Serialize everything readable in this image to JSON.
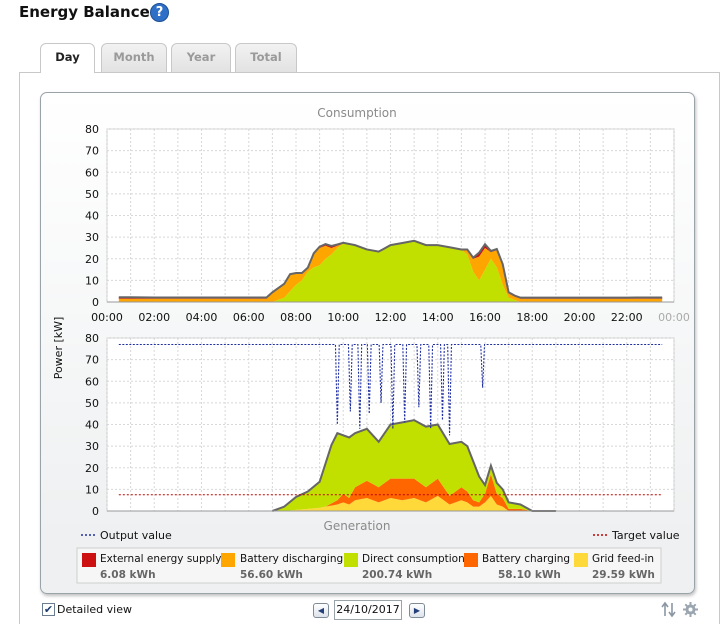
{
  "page": {
    "title": "Energy Balance",
    "help_icon": "help-icon"
  },
  "tabs": [
    {
      "label": "Day",
      "active": true
    },
    {
      "label": "Month",
      "active": false
    },
    {
      "label": "Year",
      "active": false
    },
    {
      "label": "Total",
      "active": false
    }
  ],
  "colors": {
    "external": "#cc1010",
    "battery_discharging": "#ffa500",
    "direct_consumption": "#c2e000",
    "battery_charging": "#ff6600",
    "grid_feed_in": "#ffd83a",
    "outline": "#666666",
    "output_line": "#1f2fa0",
    "target_line": "#c00000"
  },
  "chart_data": [
    {
      "type": "area",
      "title": "Consumption",
      "ylabel": "Power [kW]",
      "ylim": [
        0,
        80
      ],
      "yticks": [
        "80",
        "70",
        "60",
        "50",
        "40",
        "30",
        "20",
        "10",
        "0"
      ],
      "xticks": [
        "00:00",
        "02:00",
        "04:00",
        "06:00",
        "08:00",
        "10:00",
        "12:00",
        "14:00",
        "16:00",
        "18:00",
        "20:00",
        "22:00",
        "00:00"
      ],
      "x_hours": [
        0.5,
        1,
        2,
        3,
        4,
        5,
        6,
        6.75,
        7,
        7.5,
        7.75,
        8,
        8.25,
        8.5,
        8.75,
        9,
        9.25,
        9.5,
        9.75,
        10,
        10.5,
        11,
        11.5,
        12,
        12.5,
        13,
        13.5,
        14,
        14.5,
        15,
        15.25,
        15.5,
        15.75,
        16,
        16.25,
        16.5,
        16.75,
        17,
        17.25,
        17.5,
        18,
        19,
        20,
        21,
        22,
        22.5,
        23,
        23.5
      ],
      "series": [
        {
          "name": "Direct consumption",
          "values": [
            0,
            0,
            0,
            0,
            0,
            0,
            0,
            0,
            0,
            2,
            5,
            8,
            10,
            14,
            16,
            17,
            20,
            22,
            25,
            27,
            26,
            24,
            23,
            26,
            27,
            28,
            26,
            26,
            25,
            24,
            22,
            14,
            10,
            15,
            20,
            16,
            8,
            2,
            1,
            0,
            0,
            0,
            0,
            0,
            0,
            0,
            0,
            0
          ]
        },
        {
          "name": "Battery discharging",
          "values": [
            1.5,
            1.5,
            1.5,
            1.5,
            1.5,
            1.5,
            1.5,
            1.5,
            4,
            6,
            7.5,
            5,
            3,
            1.5,
            6,
            8,
            6,
            3,
            1,
            0,
            0,
            0,
            0,
            0,
            0,
            0,
            0,
            0,
            0,
            0,
            2,
            6,
            11,
            10,
            3,
            8,
            9,
            2,
            1.5,
            1.5,
            1.5,
            1.5,
            1.5,
            1.5,
            1.5,
            1.5,
            1.5,
            1.5
          ]
        },
        {
          "name": "External energy supply",
          "values": [
            0.7,
            0.7,
            0.6,
            0.6,
            0.6,
            0.6,
            0.6,
            0.6,
            0.5,
            0.4,
            0.4,
            0.4,
            0.4,
            0.4,
            0.5,
            0.6,
            0.8,
            0.9,
            0.6,
            0.4,
            0.3,
            0.3,
            0.3,
            0.3,
            0.3,
            0.3,
            0.3,
            0.3,
            0.3,
            0.3,
            0.3,
            0.5,
            1.8,
            1.7,
            0.6,
            0.5,
            0.5,
            0.5,
            0.5,
            0.5,
            0.5,
            0.5,
            0.5,
            0.5,
            0.5,
            0.6,
            0.6,
            0.6
          ]
        }
      ]
    },
    {
      "type": "area",
      "title": "Generation",
      "ylabel": "Power [kW]",
      "ylim": [
        0,
        80
      ],
      "yticks": [
        "80",
        "70",
        "60",
        "50",
        "40",
        "30",
        "20",
        "10",
        "0"
      ],
      "x_hours": [
        7,
        7.5,
        8,
        8.5,
        9,
        9.25,
        9.5,
        9.75,
        10,
        10.25,
        10.5,
        11,
        11.5,
        12,
        12.5,
        13,
        13.5,
        14,
        14.5,
        15,
        15.25,
        15.5,
        15.75,
        16,
        16.25,
        16.5,
        16.75,
        17,
        17.5,
        18,
        18.5,
        19
      ],
      "series": [
        {
          "name": "Grid feed-in",
          "values": [
            0,
            0,
            0.5,
            1,
            1.5,
            2,
            2.5,
            3,
            4,
            3,
            5,
            6,
            4,
            6,
            5,
            6,
            4,
            7,
            3,
            5,
            4,
            2,
            2,
            4,
            7,
            3,
            2,
            0,
            0,
            0,
            0,
            0
          ]
        },
        {
          "name": "Battery charging",
          "values": [
            0,
            0,
            0,
            0,
            0,
            0,
            1,
            2,
            4,
            3,
            6,
            8,
            7,
            9,
            10,
            9,
            7,
            8,
            4,
            6,
            5,
            3,
            2,
            4,
            10,
            5,
            4,
            1,
            1,
            0,
            0,
            0
          ]
        },
        {
          "name": "Direct consumption",
          "values": [
            0,
            2,
            6,
            8,
            12,
            20,
            27,
            31,
            27,
            28,
            25,
            24,
            21,
            25,
            26,
            27,
            28,
            25,
            24,
            21,
            21,
            18,
            12,
            4,
            4,
            5,
            4,
            3,
            2,
            0,
            0,
            0
          ]
        }
      ],
      "output_value": {
        "name": "Output value",
        "level": 77,
        "dips": [
          [
            9.75,
            40
          ],
          [
            10.3,
            46
          ],
          [
            10.7,
            38
          ],
          [
            11.1,
            45
          ],
          [
            11.6,
            50
          ],
          [
            12.1,
            38
          ],
          [
            12.6,
            41
          ],
          [
            13.2,
            48
          ],
          [
            13.7,
            38
          ],
          [
            14.2,
            42
          ],
          [
            14.5,
            35
          ],
          [
            15.9,
            57
          ]
        ]
      },
      "target_value": {
        "name": "Target value",
        "level": 7.5
      }
    }
  ],
  "legend": [
    {
      "label": "External energy supply",
      "value": "6.08 kWh",
      "color": "#cc1010"
    },
    {
      "label": "Battery discharging",
      "value": "56.60 kWh",
      "color": "#ffa500"
    },
    {
      "label": "Direct consumption",
      "value": "200.74 kWh",
      "color": "#c2e000"
    },
    {
      "label": "Battery charging",
      "value": "58.10 kWh",
      "color": "#ff6600"
    },
    {
      "label": "Grid feed-in",
      "value": "29.59 kWh",
      "color": "#ffd83a"
    }
  ],
  "line_legend": {
    "output": "Output value",
    "target": "Target value"
  },
  "footer": {
    "detailed_view_label": "Detailed view",
    "detailed_view_checked": "✔",
    "date": "24/10/2017",
    "prev_icon": "◀",
    "next_icon": "▶"
  }
}
